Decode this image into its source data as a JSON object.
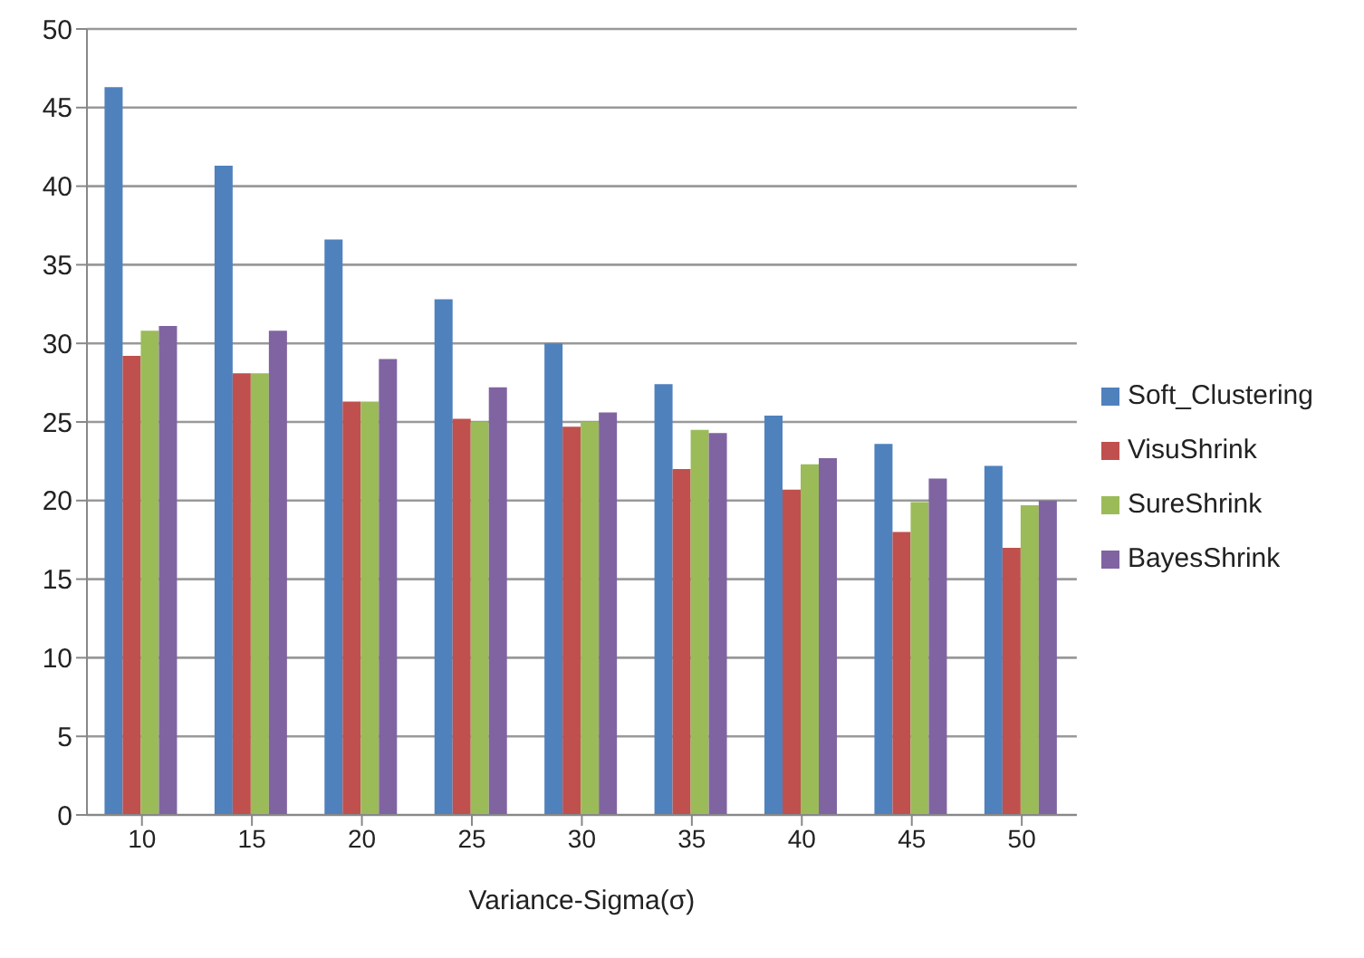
{
  "chart_data": {
    "type": "bar",
    "xlabel": "Variance-Sigma(σ)",
    "categories": [
      "10",
      "15",
      "20",
      "25",
      "30",
      "35",
      "40",
      "45",
      "50"
    ],
    "series": [
      {
        "name": "Soft_Clustering",
        "color": "#4f81bd",
        "values": [
          46.3,
          41.3,
          36.6,
          32.8,
          30.0,
          27.4,
          25.4,
          23.6,
          22.2
        ]
      },
      {
        "name": "VisuShrink",
        "color": "#c0504d",
        "values": [
          29.2,
          28.1,
          26.3,
          25.2,
          24.7,
          22.0,
          20.7,
          18.0,
          17.0
        ]
      },
      {
        "name": "SureShrink",
        "color": "#9bbb59",
        "values": [
          30.8,
          28.1,
          26.3,
          25.0,
          25.0,
          24.5,
          22.3,
          19.9,
          19.7
        ]
      },
      {
        "name": "BayesShrink",
        "color": "#8064a2",
        "values": [
          31.1,
          30.8,
          29.0,
          27.2,
          25.6,
          24.3,
          22.7,
          21.4,
          20.0
        ]
      }
    ],
    "ylim": [
      0,
      50
    ],
    "yticks": [
      0,
      5,
      10,
      15,
      20,
      25,
      30,
      35,
      40,
      45,
      50
    ],
    "grid": "y",
    "legend": "right"
  }
}
